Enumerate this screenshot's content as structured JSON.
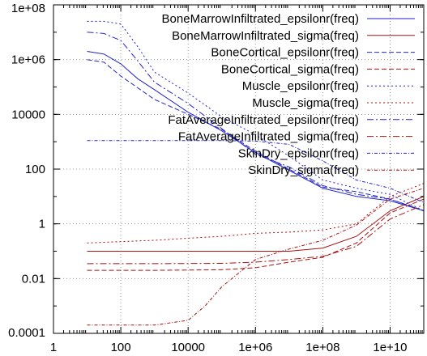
{
  "chart_data": {
    "type": "line",
    "x_scale": "log",
    "y_scale": "log",
    "xlim": [
      1,
      100000000000
    ],
    "ylim": [
      0.0001,
      100000000
    ],
    "grid": true,
    "legend_placement": "top-right",
    "x_tick_labels": [
      {
        "value": 1,
        "label": "1"
      },
      {
        "value": 100,
        "label": "100"
      },
      {
        "value": 10000,
        "label": "10000"
      },
      {
        "value": 1000000,
        "label": "1e+06"
      },
      {
        "value": 100000000,
        "label": "1e+08"
      },
      {
        "value": 10000000000,
        "label": "1e+10"
      }
    ],
    "y_tick_labels": [
      {
        "value": 0.0001,
        "label": "0.0001"
      },
      {
        "value": 0.01,
        "label": "0.01"
      },
      {
        "value": 1,
        "label": "1"
      },
      {
        "value": 100,
        "label": "100"
      },
      {
        "value": 10000,
        "label": "10000"
      },
      {
        "value": 1000000,
        "label": "1e+06"
      },
      {
        "value": 100000000,
        "label": "1e+08"
      }
    ],
    "series": [
      {
        "name": "BoneMarrowInfiltrated_epsilonr(freq)",
        "color": "#2222cc",
        "dash": "solid",
        "x": [
          10,
          31.6,
          100,
          316,
          1000,
          10000,
          100000,
          1000000,
          10000000,
          100000000,
          1000000000,
          10000000000,
          100000000000
        ],
        "y": [
          2000000,
          1600000,
          700000,
          200000,
          80000,
          12000,
          2500,
          400,
          90,
          20,
          10,
          7,
          3
        ]
      },
      {
        "name": "BoneMarrowInfiltrated_sigma(freq)",
        "color": "#aa1111",
        "dash": "solid",
        "x": [
          10,
          100,
          1000,
          10000,
          100000,
          1000000,
          10000000,
          100000000,
          1000000000,
          10000000000,
          100000000000
        ],
        "y": [
          0.1,
          0.1,
          0.1,
          0.1,
          0.1,
          0.1,
          0.1,
          0.13,
          0.35,
          3,
          10
        ]
      },
      {
        "name": "BoneCortical_epsilonr(freq)",
        "color": "#2222cc",
        "dash": "6,3",
        "x": [
          10,
          31.6,
          100,
          1000,
          10000,
          100000,
          1000000,
          10000000,
          100000000,
          1000000000,
          10000000000,
          100000000000
        ],
        "y": [
          1000000,
          800000,
          250000,
          35000,
          10000,
          2800,
          450,
          100,
          22,
          15,
          8,
          3
        ]
      },
      {
        "name": "BoneCortical_sigma(freq)",
        "color": "#aa1111",
        "dash": "6,3",
        "x": [
          10,
          1000,
          100000,
          1000000,
          10000000,
          100000000,
          1000000000,
          10000000000,
          100000000000
        ],
        "y": [
          0.02,
          0.02,
          0.021,
          0.025,
          0.04,
          0.06,
          0.2,
          2.5,
          8
        ]
      },
      {
        "name": "Muscle_epsilonr(freq)",
        "color": "#2222cc",
        "dash": "2,3",
        "x": [
          10,
          31.6,
          100,
          316,
          1000,
          10000,
          100000,
          1000000,
          10000000,
          100000000,
          1000000000,
          10000000000,
          100000000000
        ],
        "y": [
          25000000,
          25000000,
          20000000,
          3000000,
          350000,
          60000,
          8000,
          1800,
          300,
          40,
          20,
          12,
          3
        ]
      },
      {
        "name": "Muscle_sigma(freq)",
        "color": "#aa1111",
        "dash": "2,3",
        "x": [
          10,
          1000,
          10000,
          100000,
          1000000,
          10000000,
          100000000,
          1000000000,
          10000000000,
          100000000000
        ],
        "y": [
          0.2,
          0.25,
          0.3,
          0.35,
          0.45,
          0.5,
          0.6,
          1,
          10,
          30
        ]
      },
      {
        "name": "FatAverageInfiltrated_epsilonr(freq)",
        "color": "#2222cc",
        "dash": "8,3,2,3",
        "x": [
          10,
          31.6,
          100,
          316,
          1000,
          10000,
          100000,
          1000000,
          10000000,
          100000000,
          1000000000,
          10000000000,
          100000000000
        ],
        "y": [
          10000000,
          9000000,
          5000000,
          900000,
          150000,
          25000,
          3000,
          350,
          120,
          25,
          12,
          8,
          3
        ]
      },
      {
        "name": "FatAverageInfiltrated_sigma(freq)",
        "color": "#aa1111",
        "dash": "8,3,2,3",
        "x": [
          10,
          1000,
          100000,
          1000000,
          10000000,
          100000000,
          1000000000,
          10000000000,
          100000000000
        ],
        "y": [
          0.035,
          0.035,
          0.036,
          0.04,
          0.05,
          0.065,
          0.15,
          1.5,
          5
        ]
      },
      {
        "name": "SkinDry_epsilonr(freq)",
        "color": "#2222cc",
        "dash": "4,2,1,2",
        "x": [
          10,
          1000,
          10000,
          100000,
          1000000,
          10000000,
          100000000,
          1000000000,
          10000000000,
          100000000000
        ],
        "y": [
          1100,
          1100,
          1100,
          1100,
          1050,
          800,
          200,
          40,
          20,
          6
        ]
      },
      {
        "name": "SkinDry_sigma(freq)",
        "color": "#aa1111",
        "dash": "4,2,1,2",
        "x": [
          10,
          1000,
          10000,
          31623,
          100000,
          1000000,
          10000000,
          100000000,
          1000000000,
          10000000000,
          100000000000
        ],
        "y": [
          0.0002,
          0.0002,
          0.0003,
          0.001,
          0.005,
          0.05,
          0.12,
          0.25,
          0.9,
          8,
          20
        ]
      }
    ]
  }
}
